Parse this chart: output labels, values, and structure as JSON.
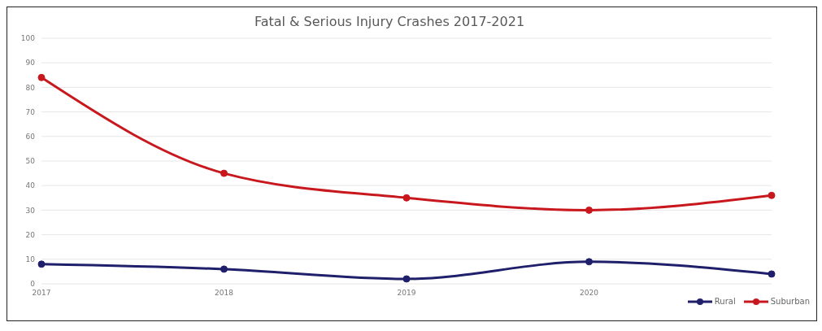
{
  "chart_data": {
    "type": "line",
    "title": "Fatal & Serious Injury Crashes 2017-2021",
    "categories": [
      "2017",
      "2018",
      "2019",
      "2020",
      null
    ],
    "series": [
      {
        "name": "Rural",
        "color": "#1f1f6b",
        "values": [
          8,
          6,
          2,
          9,
          4
        ]
      },
      {
        "name": "Suburban",
        "color": "#c8181e",
        "values": [
          84,
          45,
          35,
          30,
          36
        ]
      }
    ],
    "ylim": [
      0,
      100
    ],
    "yticks": [
      0,
      10,
      20,
      30,
      40,
      50,
      60,
      70,
      80,
      90,
      100
    ],
    "grid": "y",
    "legend": "bottom right",
    "marker": "circle",
    "line_style": "solid"
  }
}
